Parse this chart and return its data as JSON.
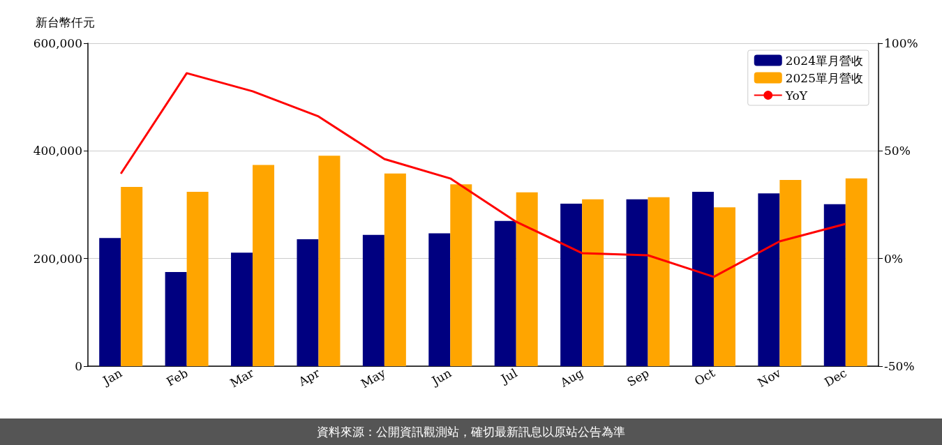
{
  "chart_data": {
    "type": "bar",
    "ylabel": "新台幣仟元",
    "categories": [
      "Jan",
      "Feb",
      "Mar",
      "Apr",
      "May",
      "Jun",
      "Jul",
      "Aug",
      "Sep",
      "Oct",
      "Nov",
      "Dec"
    ],
    "series": [
      {
        "name": "2024單月營收",
        "color": "#000080",
        "values": [
          238000,
          175000,
          211000,
          236000,
          244000,
          247000,
          270000,
          302000,
          310000,
          324000,
          321000,
          301000
        ]
      },
      {
        "name": "2025單月營收",
        "color": "#ffa500",
        "values": [
          333000,
          324000,
          374000,
          391000,
          358000,
          338000,
          323000,
          310000,
          314000,
          295000,
          346000,
          349000
        ]
      },
      {
        "name": "YoY",
        "type": "line",
        "axis": "y2",
        "color": "#ff0000",
        "marker": "none",
        "values": [
          39.4,
          86.1,
          77.7,
          66.0,
          46.2,
          37.2,
          17.1,
          2.5,
          1.5,
          -8.5,
          8.0,
          16.1
        ]
      }
    ],
    "ylim": [
      0,
      600000
    ],
    "yticks": [
      {
        "value": 0,
        "label": "0"
      },
      {
        "value": 200000,
        "label": "200,000"
      },
      {
        "value": 400000,
        "label": "400,000"
      },
      {
        "value": 600000,
        "label": "600,000"
      }
    ],
    "y2lim": [
      -50,
      100
    ],
    "y2ticks": [
      {
        "value": -50,
        "label": "-50%"
      },
      {
        "value": 0,
        "label": "0%"
      },
      {
        "value": 50,
        "label": "50%"
      },
      {
        "value": 100,
        "label": "100%"
      }
    ],
    "grid": "y",
    "legend": "top right",
    "annotations": [
      "資料來源：公開資訊觀測站，確切最新訊息以原站公告為準"
    ]
  }
}
